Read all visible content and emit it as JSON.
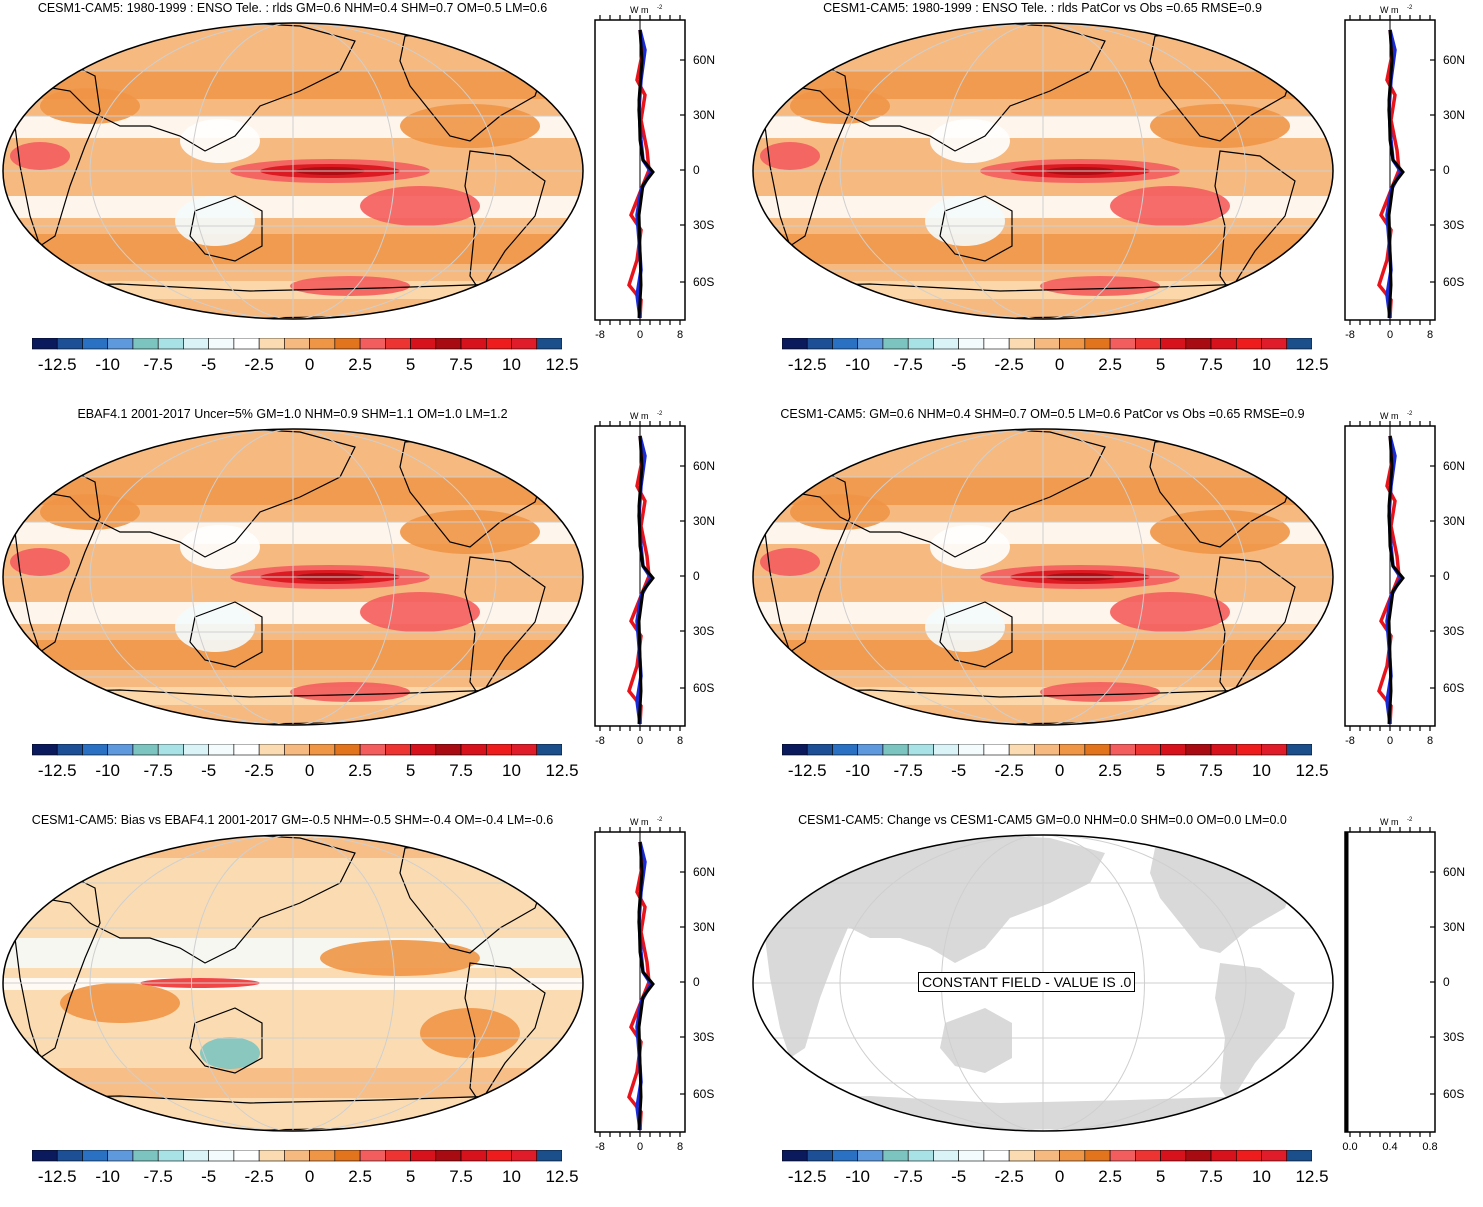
{
  "colorbar": {
    "colors": [
      "#0b1a5c",
      "#1c4f96",
      "#2a71c4",
      "#5e98dd",
      "#7cc4c0",
      "#a9e2e6",
      "#daf3f7",
      "#f4fbfc",
      "#ffffff",
      "#fbdcb2",
      "#f6b980",
      "#ef9546",
      "#e3741e",
      "#f45d5d",
      "#ee3333",
      "#d8121c",
      "#a80c12",
      "#d8121c",
      "#ee1c1c",
      "#e11c2a",
      "#1b4f8c"
    ],
    "labels": [
      "-12.5",
      "-10",
      "-7.5",
      "-5",
      "-2.5",
      "0",
      "2.5",
      "5",
      "7.5",
      "10",
      "12.5"
    ]
  },
  "zonal_ticks": [
    "60N",
    "30N",
    "0",
    "30S",
    "60S"
  ],
  "zonal_unit": "W m",
  "zonal_unit_sup": "-2",
  "zonal_x_labels": [
    "-8",
    "0",
    "8"
  ],
  "zonal_x_labels_const": [
    "0.0",
    "0.4",
    "0.8"
  ],
  "panels": [
    {
      "title": "CESM1-CAM5: 1980-1999 : ENSO Tele. : rlds GM=0.6 NHM=0.4 SHM=0.7 OM=0.5 LM=0.6",
      "type": "model"
    },
    {
      "title": "CESM1-CAM5: 1980-1999 : ENSO Tele. : rlds PatCor vs Obs =0.65 RMSE=0.9",
      "type": "model"
    },
    {
      "title": "EBAF4.1 2001-2017 Uncer=5% GM=1.0 NHM=0.9 SHM=1.1 OM=1.0 LM=1.2",
      "type": "obs"
    },
    {
      "title": "CESM1-CAM5: GM=0.6 NHM=0.4 SHM=0.7 OM=0.5 LM=0.6 PatCor vs Obs =0.65 RMSE=0.9",
      "type": "model"
    },
    {
      "title": "CESM1-CAM5: Bias vs EBAF4.1 2001-2017 GM=-0.5 NHM=-0.5 SHM=-0.4 OM=-0.4 LM=-0.6",
      "type": "bias"
    },
    {
      "title": "CESM1-CAM5: Change vs CESM1-CAM5 GM=0.0 NHM=0.0 SHM=0.0 OM=0.0 LM=0.0",
      "type": "const"
    }
  ],
  "constant_message": "CONSTANT FIELD - VALUE IS .0"
}
